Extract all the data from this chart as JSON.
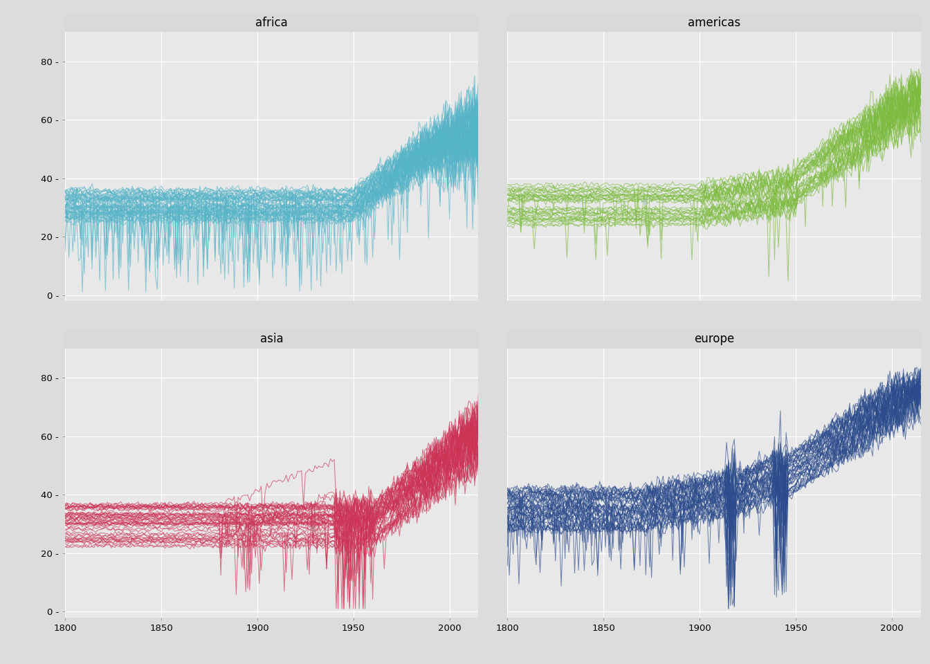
{
  "regions": [
    "africa",
    "americas",
    "asia",
    "europe"
  ],
  "colors": {
    "africa": "#56B4C8",
    "americas": "#7CBB3E",
    "asia": "#CC3355",
    "europe": "#2B4B8C"
  },
  "xlim": [
    1800,
    2015
  ],
  "ylim": [
    -2,
    90
  ],
  "xticks": [
    1800,
    1850,
    1900,
    1950,
    2000
  ],
  "yticks": [
    0,
    20,
    40,
    60,
    80
  ],
  "strip_bg": "#D9D9D9",
  "panel_bg": "#E8E8E8",
  "plot_bg": "#DCDCDC",
  "grid_color": "#FFFFFF",
  "line_alpha": 0.65,
  "line_width": 0.75,
  "title_fontsize": 12,
  "tick_fontsize": 9.5,
  "n_countries": {
    "africa": 52,
    "americas": 35,
    "asia": 47,
    "europe": 43
  }
}
